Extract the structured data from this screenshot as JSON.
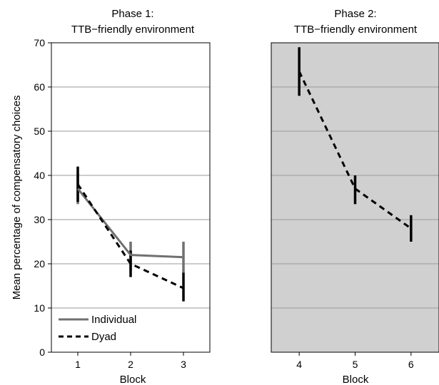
{
  "chart_data": [
    {
      "type": "line",
      "title_line1": "Phase 1:",
      "title_line2": "TTB−friendly environment",
      "xlabel": "Block",
      "ylabel": "Mean percentage of compensatory choices",
      "xlim": [
        0.5,
        3.5
      ],
      "ylim": [
        0,
        70
      ],
      "xticks": [
        "1",
        "2",
        "3"
      ],
      "yticks": [
        "0",
        "10",
        "20",
        "30",
        "40",
        "50",
        "60",
        "70"
      ],
      "grid": "horizontal",
      "background": "#ffffff",
      "legend": "bottom-left",
      "series": [
        {
          "name": "Individual",
          "style": "solid",
          "color": "#707070",
          "x": [
            1,
            2,
            3
          ],
          "values": [
            37,
            22,
            21.5
          ],
          "error": [
            [
              33.5,
              40.5
            ],
            [
              18.5,
              25
            ],
            [
              18,
              25
            ]
          ]
        },
        {
          "name": "Dyad",
          "style": "dashed",
          "color": "#000000",
          "x": [
            1,
            2,
            3
          ],
          "values": [
            38,
            20,
            14.5
          ],
          "error": [
            [
              34,
              42
            ],
            [
              17,
              23
            ],
            [
              11.5,
              18
            ]
          ]
        }
      ]
    },
    {
      "type": "line",
      "title_line1": "Phase 2:",
      "title_line2": "TTB−friendly environment",
      "xlabel": "Block",
      "ylabel": "",
      "xlim": [
        3.5,
        6.5
      ],
      "ylim": [
        0,
        70
      ],
      "xticks": [
        "4",
        "5",
        "6"
      ],
      "grid": "horizontal",
      "background": "#d0d0d0",
      "series": [
        {
          "style": "dashed",
          "color": "#000000",
          "x": [
            4,
            5,
            6
          ],
          "values": [
            63.5,
            37,
            28
          ],
          "error": [
            [
              58,
              69
            ],
            [
              33.5,
              40
            ],
            [
              25,
              31
            ]
          ]
        }
      ]
    }
  ]
}
